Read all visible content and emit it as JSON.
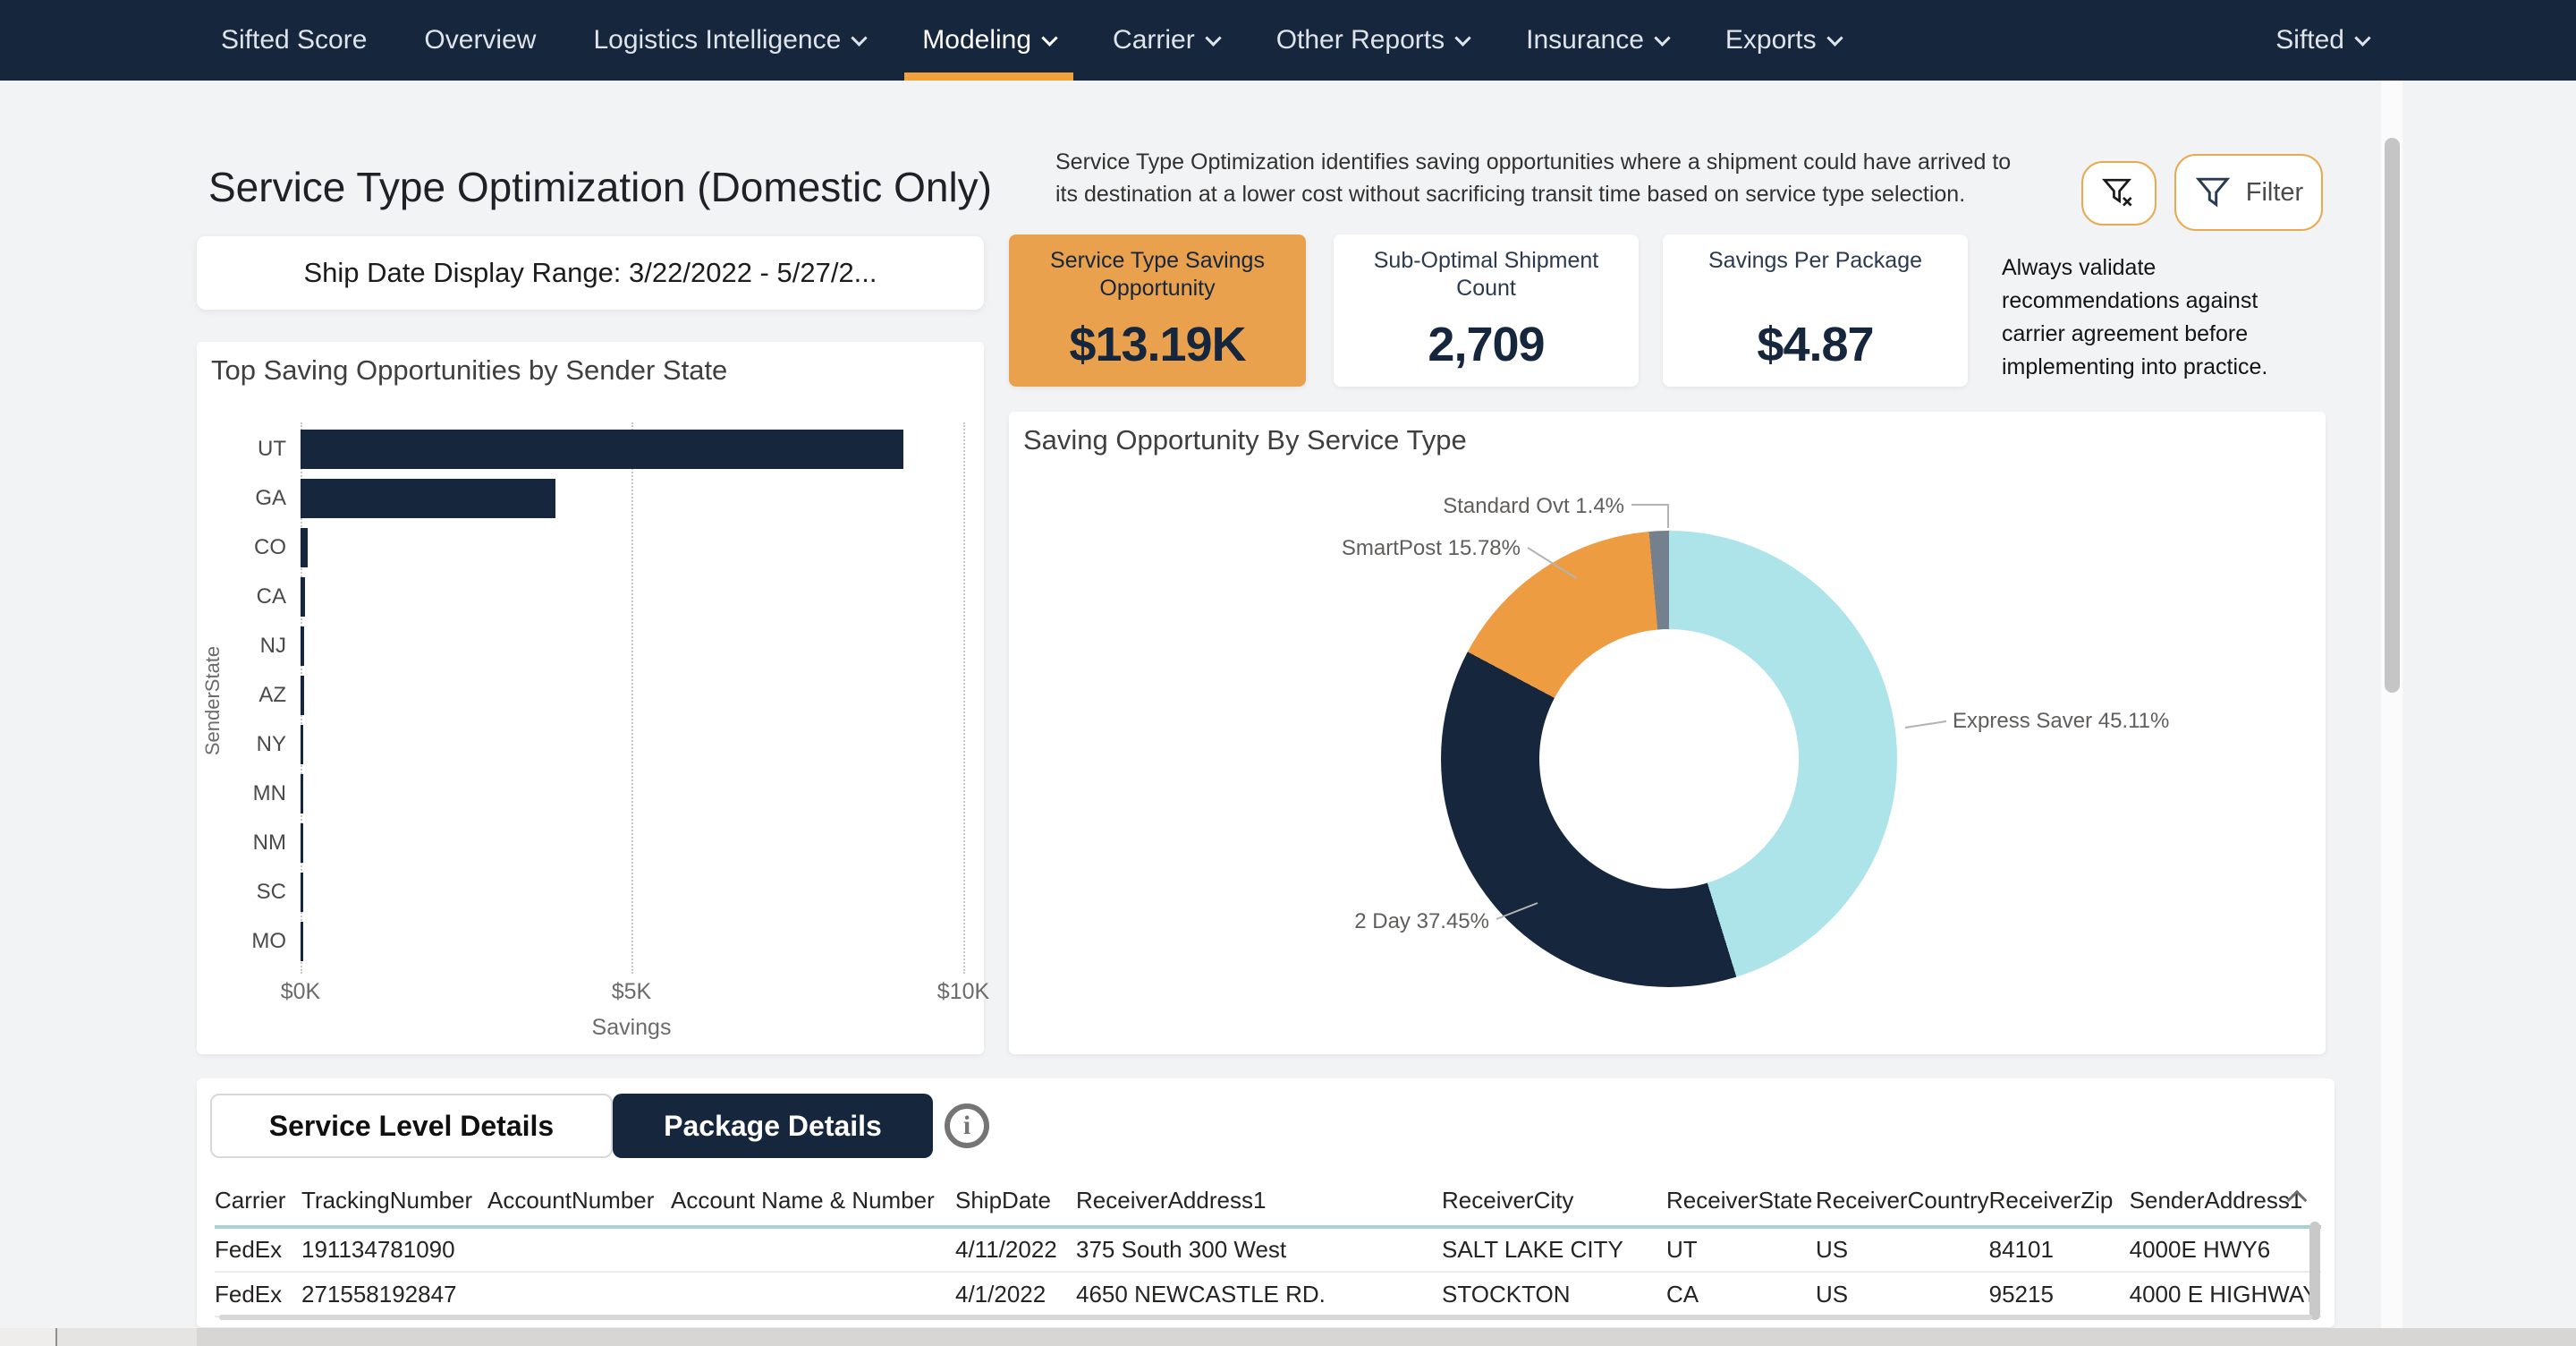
{
  "nav": {
    "items": [
      {
        "label": "Sifted Score",
        "dropdown": false,
        "active": false
      },
      {
        "label": "Overview",
        "dropdown": false,
        "active": false
      },
      {
        "label": "Logistics Intelligence",
        "dropdown": true,
        "active": false
      },
      {
        "label": "Modeling",
        "dropdown": true,
        "active": true
      },
      {
        "label": "Carrier",
        "dropdown": true,
        "active": false
      },
      {
        "label": "Other Reports",
        "dropdown": true,
        "active": false
      },
      {
        "label": "Insurance",
        "dropdown": true,
        "active": false
      },
      {
        "label": "Exports",
        "dropdown": true,
        "active": false
      }
    ],
    "account": {
      "label": "Sifted",
      "dropdown": true
    }
  },
  "page": {
    "title": "Service Type Optimization (Domestic Only)",
    "description": "Service Type Optimization identifies saving opportunities where a shipment could have arrived to its destination at a lower cost without sacrificing transit time based on service type selection.",
    "note": "Always validate recommendations against carrier agreement before implementing into practice."
  },
  "toolbar": {
    "clear_filter_icon": "funnel-x-icon",
    "filter_icon": "funnel-icon",
    "filter_label": "Filter"
  },
  "slicer": {
    "ship_date_label": "Ship Date Display Range: 3/22/2022 - 5/27/2..."
  },
  "kpis": [
    {
      "label": "Service Type Savings Opportunity",
      "value": "$13.19K",
      "highlight": true
    },
    {
      "label": "Sub-Optimal Shipment Count",
      "value": "2,709",
      "highlight": false
    },
    {
      "label": "Savings Per Package",
      "value": "$4.87",
      "highlight": false
    }
  ],
  "chart_data": [
    {
      "type": "bar",
      "orientation": "horizontal",
      "title": "Top Saving Opportunities by Sender State",
      "categories": [
        "UT",
        "GA",
        "CO",
        "CA",
        "NJ",
        "AZ",
        "NY",
        "MN",
        "NM",
        "SC",
        "MO"
      ],
      "values_k_usd": [
        9.1,
        3.85,
        0.11,
        0.07,
        0.06,
        0.05,
        0.045,
        0.04,
        0.038,
        0.035,
        0.03
      ],
      "xlabel": "Savings",
      "ylabel": "SenderState",
      "xlim": [
        0,
        10
      ],
      "x_ticks": [
        "$0K",
        "$5K",
        "$10K"
      ],
      "bar_color": "#16263C",
      "grid": "dotted-vertical",
      "legend": "none"
    },
    {
      "type": "pie",
      "donut": true,
      "title": "Saving Opportunity By Service Type",
      "labels": [
        "Express Saver",
        "2 Day",
        "SmartPost",
        "Standard Ovt"
      ],
      "values_pct": [
        45.11,
        37.45,
        15.78,
        1.4
      ],
      "display_labels": [
        "Express Saver 45.11%",
        "2 Day 37.45%",
        "SmartPost 15.78%",
        "Standard Ovt 1.4%"
      ],
      "colors": [
        "#ADE4EA",
        "#16263C",
        "#EE9C41",
        "#75808F"
      ],
      "start_angle_deg": 0,
      "legend": "callout-labels"
    }
  ],
  "details": {
    "tabs": [
      {
        "label": "Service Level Details",
        "active": false
      },
      {
        "label": "Package Details",
        "active": true
      }
    ],
    "columns": [
      "Carrier",
      "TrackingNumber",
      "AccountNumber",
      "Account Name & Number",
      "ShipDate",
      "ReceiverAddress1",
      "ReceiverCity",
      "ReceiverState",
      "ReceiverCountry",
      "ReceiverZip",
      "SenderAddress1"
    ],
    "rows": [
      [
        "FedEx",
        "191134781090",
        "",
        "",
        "4/11/2022",
        "375 South 300 West",
        "SALT LAKE CITY",
        "UT",
        "US",
        "84101",
        "4000E HWY6"
      ],
      [
        "FedEx",
        "271558192847",
        "",
        "",
        "4/1/2022",
        "4650 NEWCASTLE RD.",
        "STOCKTON",
        "CA",
        "US",
        "95215",
        "4000 E HIGHWAY"
      ]
    ]
  },
  "colors": {
    "navy": "#16263C",
    "orange_accent": "#F2A23B",
    "kpi_orange": "#EAA14E",
    "page_bg": "#F2F3F5",
    "donut_cyan": "#ADE4EA",
    "donut_gray": "#75808F",
    "header_rule_cyan": "#A9CFD9"
  }
}
